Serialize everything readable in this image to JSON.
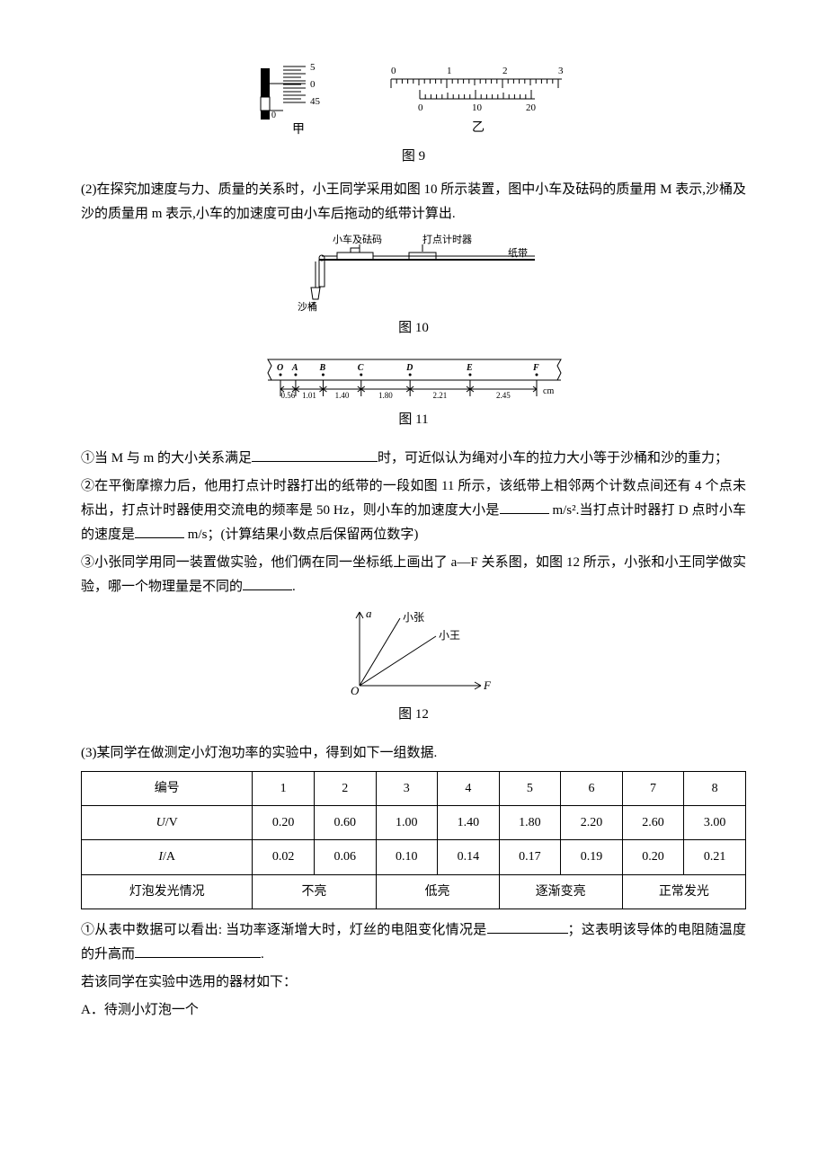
{
  "fig9": {
    "caption": "图 9",
    "micrometer_label": "甲",
    "vernier_label": "乙",
    "micrometer_main": "0",
    "micrometer_thimble": [
      "5",
      "0",
      "45"
    ],
    "vernier_main_ticks": [
      "0",
      "1",
      "2",
      "3"
    ],
    "vernier_sub_ticks": [
      "0",
      "10",
      "20"
    ],
    "colors": {
      "stroke": "#000000",
      "fill_dark": "#d3d3d3"
    }
  },
  "sec2": {
    "intro": "(2)在探究加速度与力、质量的关系时，小王同学采用如图 10 所示装置，图中小车及砝码的质量用 M 表示,沙桶及沙的质量用 m 表示,小车的加速度可由小车后拖动的纸带计算出.",
    "q1": "①当 M 与 m 的大小关系满足",
    "q1_tail": "时，可近似认为绳对小车的拉力大小等于沙桶和沙的重力；",
    "q2a": "②在平衡摩擦力后，他用打点计时器打出的纸带的一段如图 11 所示，该纸带上相邻两个计数点间还有 4 个点未标出，打点计时器使用交流电的频率是 50 Hz，则小车的加速度大小是",
    "q2_unit1": "m/s².当打点计时器打 D 点时小车的速度是",
    "q2_unit2": "m/s；(计算结果小数点后保留两位数字)",
    "q3a": "③小张同学用同一装置做实验，他们俩在同一坐标纸上画出了 a—F 关系图，如图 12 所示，小张和小王同学做实验，哪一个物理量是不同的",
    "q3_tail": "."
  },
  "fig10": {
    "caption": "图 10",
    "labels": {
      "cart": "小车及砝码",
      "timer": "打点计时器",
      "tape": "纸带",
      "bucket": "沙桶"
    }
  },
  "fig11": {
    "caption": "图 11",
    "points": [
      "O",
      "A",
      "B",
      "C",
      "D",
      "E",
      "F"
    ],
    "dists": [
      "0.56",
      "1.01",
      "1.40",
      "1.80",
      "2.21",
      "2.45"
    ],
    "unit": "cm"
  },
  "fig12": {
    "caption": "图 12",
    "y_axis": "a",
    "x_axis": "F",
    "origin": "O",
    "line1": "小张",
    "line2": "小王"
  },
  "sec3": {
    "intro": "(3)某同学在做测定小灯泡功率的实验中，得到如下一组数据.",
    "q1a": "①从表中数据可以看出: 当功率逐渐增大时，灯丝的电阻变化情况是",
    "q1b": "；这表明该导体的电阻随温度的升高而",
    "q1c": ".",
    "rest1": "若该同学在实验中选用的器材如下：",
    "rest2": "A．待测小灯泡一个"
  },
  "table": {
    "headers": [
      "编号",
      "1",
      "2",
      "3",
      "4",
      "5",
      "6",
      "7",
      "8"
    ],
    "row_u_label": "U/V",
    "row_u": [
      "0.20",
      "0.60",
      "1.00",
      "1.40",
      "1.80",
      "2.20",
      "2.60",
      "3.00"
    ],
    "row_i_label": "I/A",
    "row_i": [
      "0.02",
      "0.06",
      "0.10",
      "0.14",
      "0.17",
      "0.19",
      "0.20",
      "0.21"
    ],
    "row_light_label": "灯泡发光情况",
    "row_light": [
      "不亮",
      "低亮",
      "逐渐变亮",
      "正常发光"
    ]
  }
}
